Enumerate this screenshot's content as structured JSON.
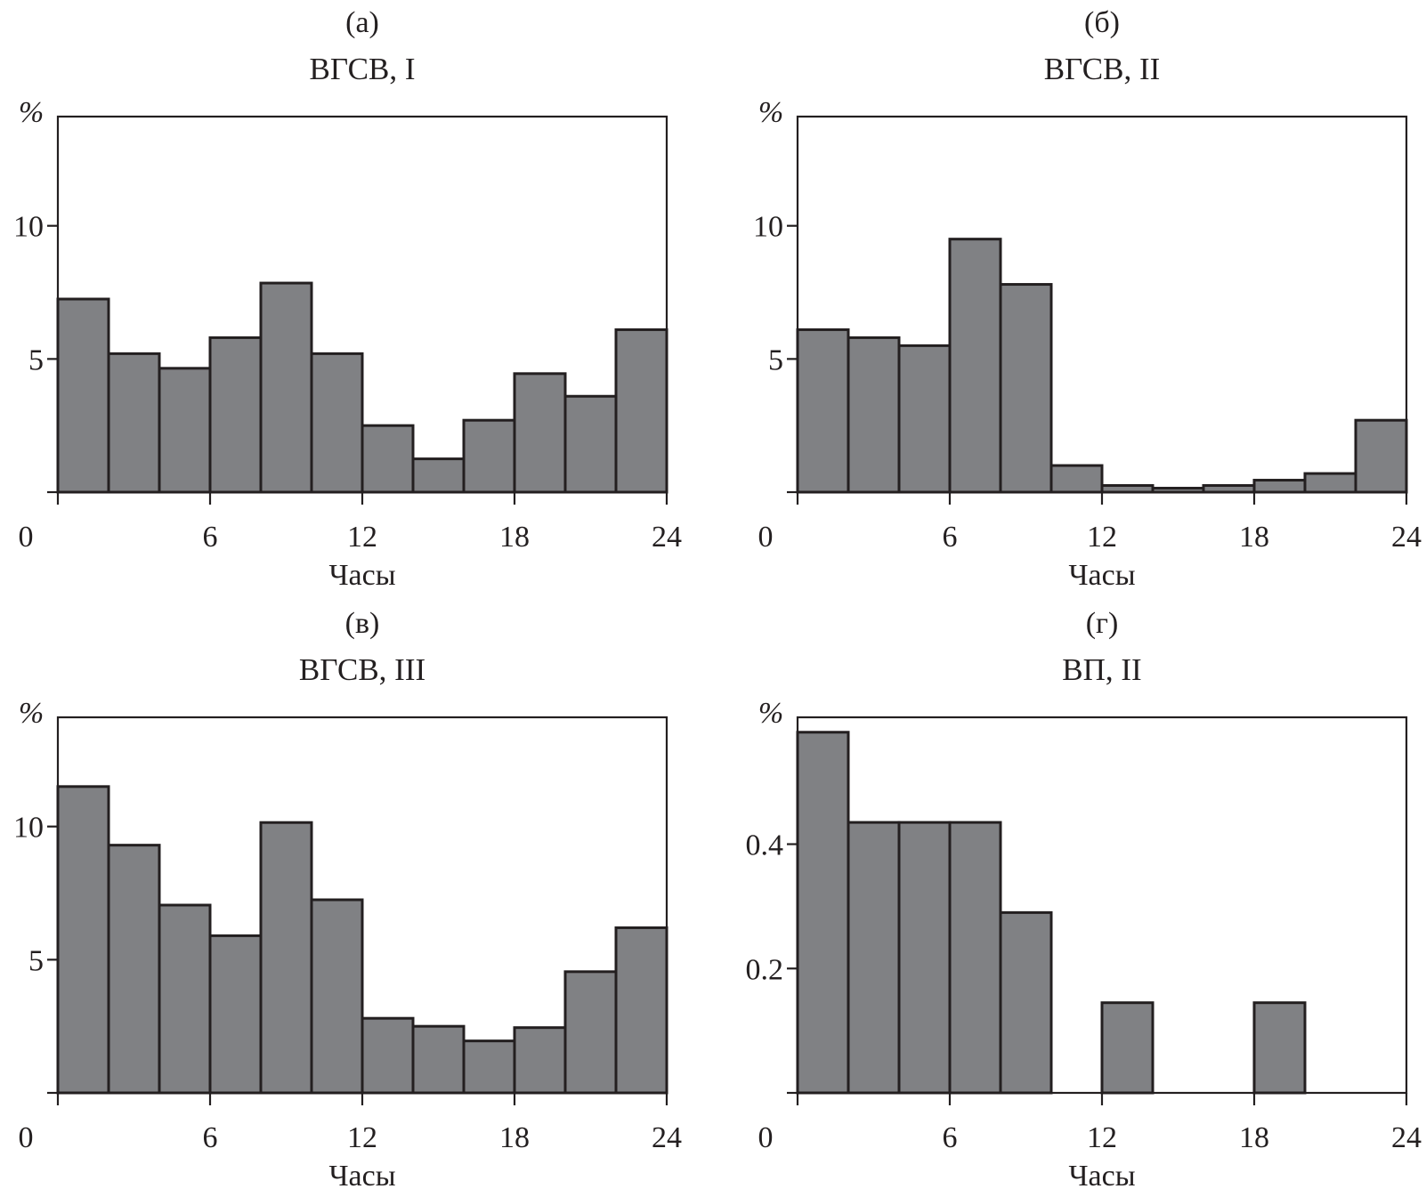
{
  "chart_data": [
    {
      "type": "bar",
      "panel": "(а)",
      "title": "ВГСВ, I",
      "xlabel": "Часы",
      "ylabel": "%",
      "bin_edges": [
        0,
        2,
        4,
        6,
        8,
        10,
        12,
        14,
        16,
        18,
        20,
        22,
        24
      ],
      "values": [
        7.25,
        5.2,
        4.65,
        5.8,
        7.85,
        5.2,
        2.5,
        1.25,
        2.7,
        4.45,
        3.6,
        6.1
      ],
      "xlim": [
        0,
        24
      ],
      "ylim": [
        0,
        14.1
      ],
      "xticks": [
        0,
        6,
        12,
        18,
        24
      ],
      "xtick_labels": [
        "0",
        "6",
        "12",
        "18",
        "24"
      ],
      "yticks": [
        0,
        5,
        10
      ],
      "ytick_labels": [
        "",
        "5",
        "10"
      ],
      "grid": false
    },
    {
      "type": "bar",
      "panel": "(б)",
      "title": "ВГСВ, II",
      "xlabel": "Часы",
      "ylabel": "%",
      "bin_edges": [
        0,
        2,
        4,
        6,
        8,
        10,
        12,
        14,
        16,
        18,
        20,
        22,
        24
      ],
      "values": [
        6.1,
        5.8,
        5.5,
        9.5,
        7.8,
        1.0,
        0.25,
        0.15,
        0.25,
        0.45,
        0.7,
        2.7
      ],
      "xlim": [
        0,
        24
      ],
      "ylim": [
        0,
        14.1
      ],
      "xticks": [
        0,
        6,
        12,
        18,
        24
      ],
      "xtick_labels": [
        "0",
        "6",
        "12",
        "18",
        "24"
      ],
      "yticks": [
        0,
        5,
        10
      ],
      "ytick_labels": [
        "",
        "5",
        "10"
      ],
      "grid": false
    },
    {
      "type": "bar",
      "panel": "(в)",
      "title": "ВГСВ, III",
      "xlabel": "Часы",
      "ylabel": "%",
      "bin_edges": [
        0,
        2,
        4,
        6,
        8,
        10,
        12,
        14,
        16,
        18,
        20,
        22,
        24
      ],
      "values": [
        11.5,
        9.3,
        7.05,
        5.9,
        10.15,
        7.25,
        2.8,
        2.5,
        1.95,
        2.45,
        4.55,
        6.2
      ],
      "xlim": [
        0,
        24
      ],
      "ylim": [
        0,
        14.1
      ],
      "xticks": [
        0,
        6,
        12,
        18,
        24
      ],
      "xtick_labels": [
        "0",
        "6",
        "12",
        "18",
        "24"
      ],
      "yticks": [
        0,
        5,
        10
      ],
      "ytick_labels": [
        "",
        "5",
        "10"
      ],
      "grid": false
    },
    {
      "type": "bar",
      "panel": "(г)",
      "title": "ВП, II",
      "xlabel": "Часы",
      "ylabel": "%",
      "bin_edges": [
        0,
        2,
        4,
        6,
        8,
        10,
        12,
        14,
        16,
        18,
        20,
        22,
        24
      ],
      "values": [
        0.58,
        0.435,
        0.435,
        0.435,
        0.29,
        0,
        0.145,
        0,
        0,
        0.145,
        0,
        0
      ],
      "xlim": [
        0,
        24
      ],
      "ylim": [
        0,
        0.604
      ],
      "xticks": [
        0,
        6,
        12,
        18,
        24
      ],
      "xtick_labels": [
        "0",
        "6",
        "12",
        "18",
        "24"
      ],
      "yticks": [
        0,
        0.2,
        0.4
      ],
      "ytick_labels": [
        "",
        "0.2",
        "0.4"
      ],
      "grid": false
    }
  ]
}
